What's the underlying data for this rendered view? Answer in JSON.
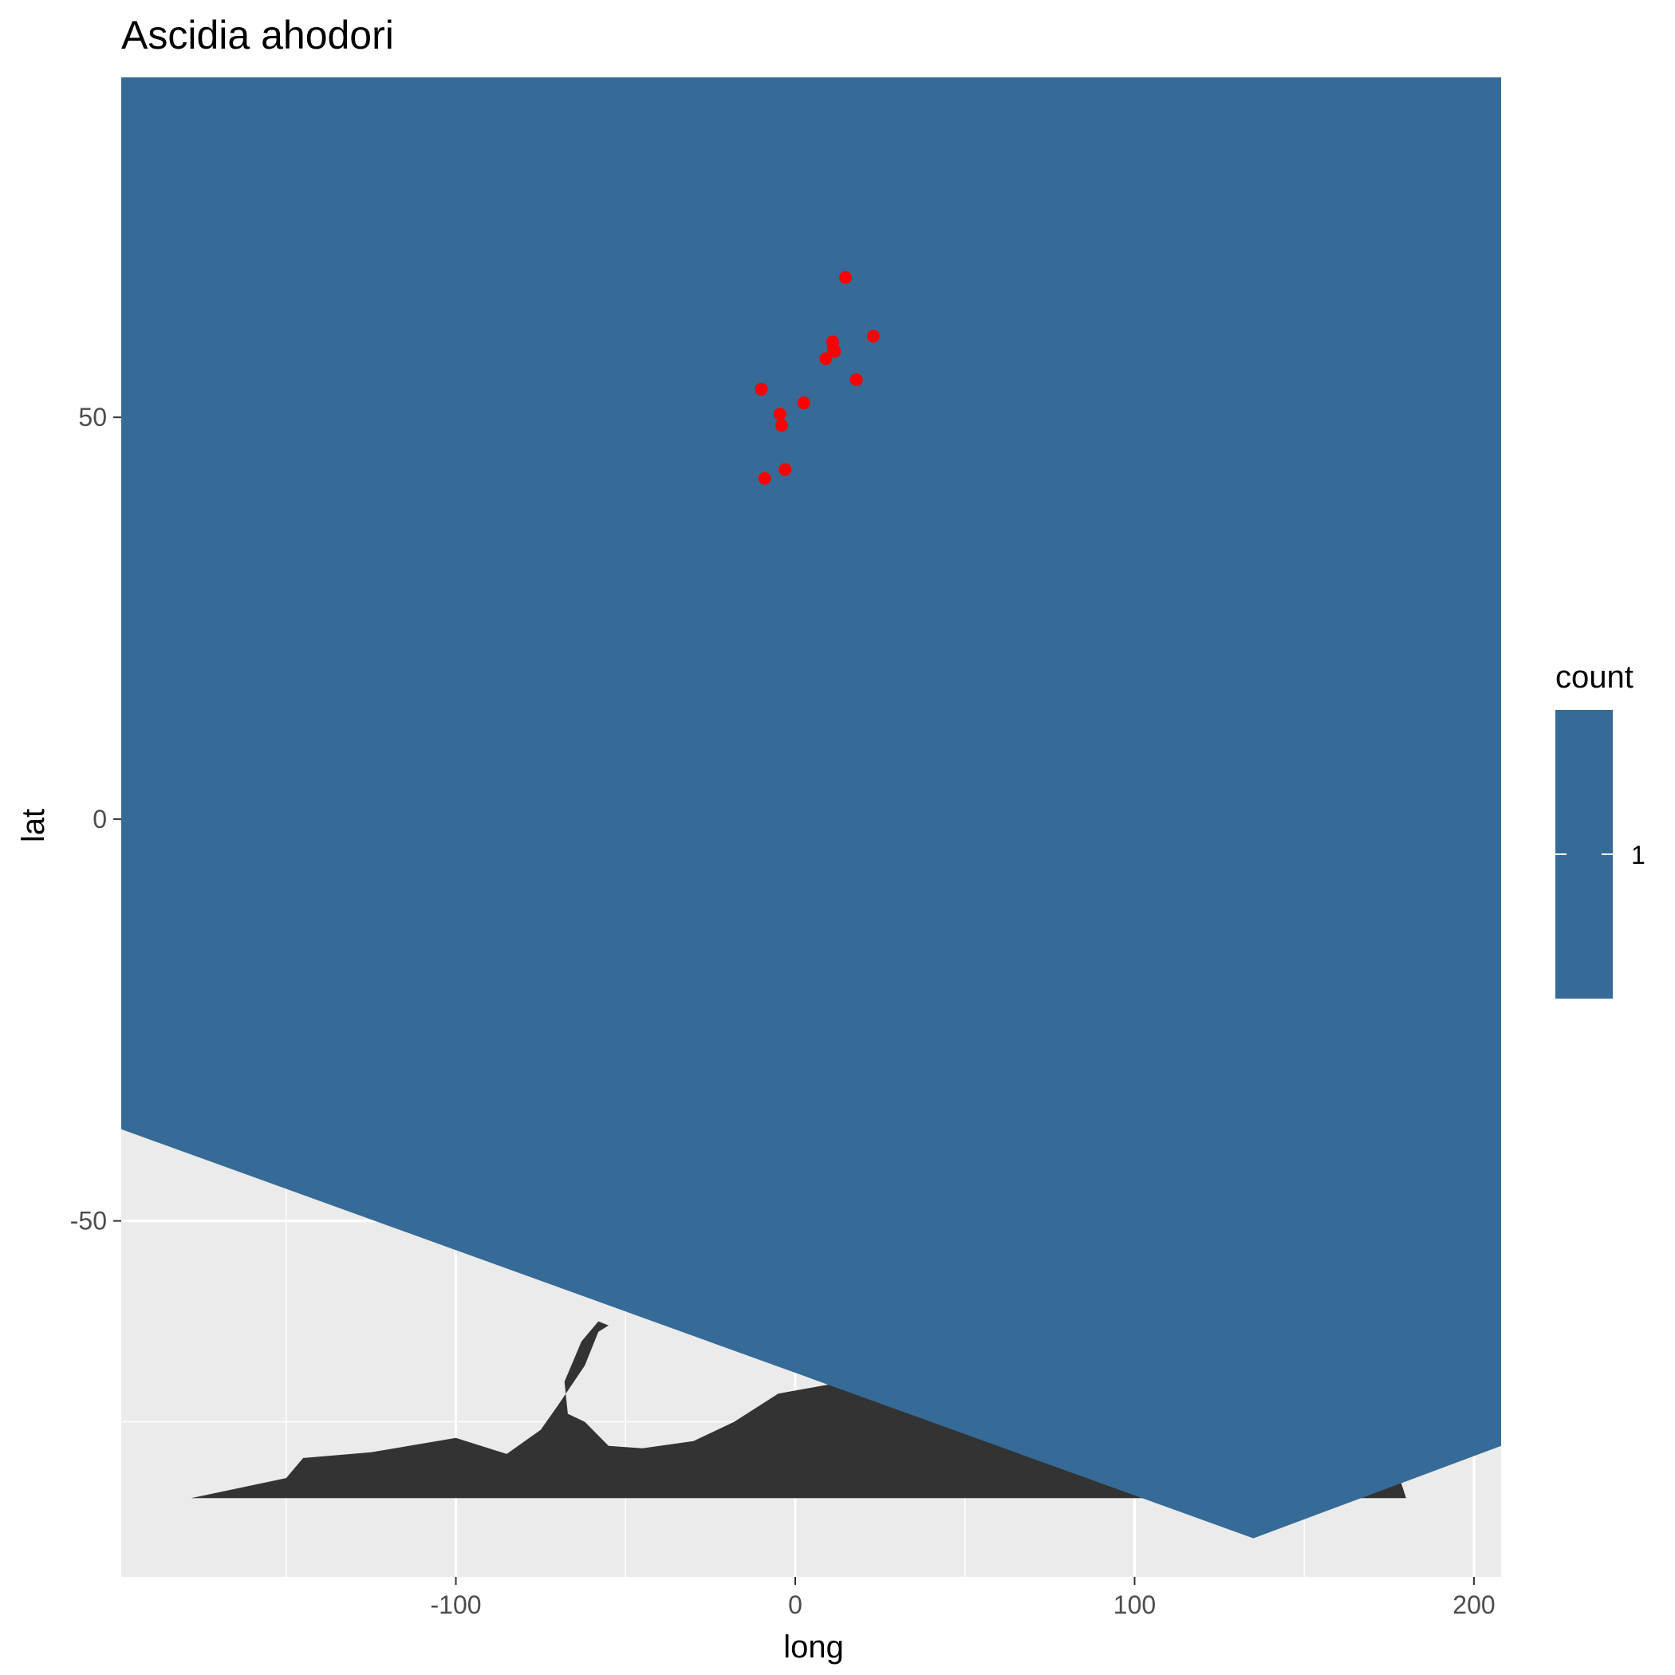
{
  "chart_data": {
    "type": "scatter",
    "title": "Ascidia ahodori",
    "xlabel": "long",
    "ylabel": "lat",
    "xlim": [
      -198.6,
      208.0
    ],
    "ylim": [
      -94.3,
      92.3
    ],
    "x_ticks": [
      -100,
      0,
      100,
      200
    ],
    "x_tick_labels": [
      "-100",
      "0",
      "100",
      "200"
    ],
    "y_ticks": [
      -50,
      0,
      50
    ],
    "y_tick_labels": [
      "-50",
      "0",
      "50"
    ],
    "x_minor_gridlines": [
      -150,
      -50,
      50,
      150
    ],
    "y_minor_gridlines": [
      -75,
      -25,
      25,
      75
    ],
    "grid": true,
    "panel_background": "#ebebeb",
    "gridline_color": "#ffffff",
    "ocean_color": "#366b98",
    "land_color": "#333333",
    "point_color": "#ff0000",
    "ocean_polygon": [
      [
        -198.6,
        92.3
      ],
      [
        208.0,
        92.3
      ],
      [
        208.0,
        -78.0
      ],
      [
        135.0,
        -89.5
      ],
      [
        -198.6,
        -38.6
      ]
    ],
    "land_outline": [
      [
        -178,
        -84.5
      ],
      [
        -150,
        -82
      ],
      [
        -145,
        -79.5
      ],
      [
        -125,
        -78.8
      ],
      [
        -100,
        -77
      ],
      [
        -85,
        -79
      ],
      [
        -75,
        -76
      ],
      [
        -70,
        -73
      ],
      [
        -62,
        -68
      ],
      [
        -58,
        -63.8
      ],
      [
        -55,
        -63
      ],
      [
        -58,
        -62.5
      ],
      [
        -63,
        -65
      ],
      [
        -68,
        -70
      ],
      [
        -67,
        -74
      ],
      [
        -62,
        -75
      ],
      [
        -55,
        -78
      ],
      [
        -45,
        -78.3
      ],
      [
        -30,
        -77.4
      ],
      [
        -18,
        -75
      ],
      [
        -5,
        -71.5
      ],
      [
        8,
        -70.5
      ],
      [
        15,
        -70
      ],
      [
        30,
        -69.5
      ],
      [
        50,
        -67.5
      ],
      [
        70,
        -69
      ],
      [
        90,
        -66.5
      ],
      [
        120,
        -66
      ],
      [
        155,
        -68.5
      ],
      [
        170,
        -71.5
      ],
      [
        180,
        -84.5
      ]
    ],
    "points": [
      {
        "long": 14.8,
        "lat": 67.4
      },
      {
        "long": 23.0,
        "lat": 60.1
      },
      {
        "long": 11.0,
        "lat": 59.4
      },
      {
        "long": 11.2,
        "lat": 58.6
      },
      {
        "long": 11.6,
        "lat": 58.2
      },
      {
        "long": 9.0,
        "lat": 57.3
      },
      {
        "long": 18.0,
        "lat": 54.7
      },
      {
        "long": -10.0,
        "lat": 53.5
      },
      {
        "long": 2.5,
        "lat": 51.8
      },
      {
        "long": -4.5,
        "lat": 50.4
      },
      {
        "long": -4.0,
        "lat": 49.0
      },
      {
        "long": -3.0,
        "lat": 43.5
      },
      {
        "long": -9.0,
        "lat": 42.4
      }
    ],
    "legend": {
      "title": "count",
      "labels": [
        "1"
      ],
      "position": "right",
      "color": "#366b98"
    }
  }
}
